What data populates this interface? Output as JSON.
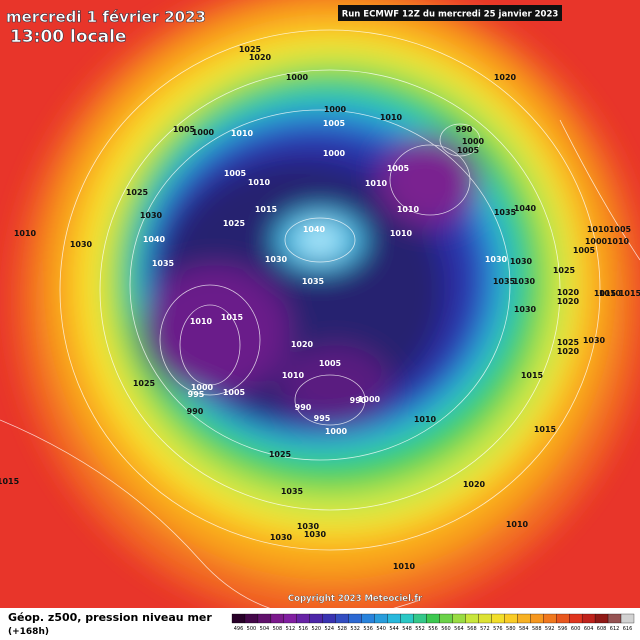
{
  "header": {
    "title": "mercredi 1 février 2023",
    "subtitle": "13:00 locale",
    "run": "Run ECMWF 12Z du mercredi 25 janvier 2023"
  },
  "map": {
    "copyright": "Copyright 2023 Meteociel.fr",
    "isobar_labels": [
      "1025",
      "1020",
      "1000",
      "1020",
      "1000",
      "1010",
      "1005",
      "990",
      "1005",
      "1000",
      "1010",
      "1000",
      "1005",
      "1000",
      "1005",
      "1005",
      "1010",
      "1010",
      "1025",
      "1010",
      "1030",
      "1015",
      "1035",
      "1040",
      "1025",
      "1010",
      "1040",
      "1030",
      "1040",
      "1010",
      "1030",
      "1035",
      "1035",
      "1030",
      "1030",
      "1025",
      "1035",
      "1030",
      "1020",
      "1020",
      "1015",
      "1010",
      "1015",
      "1030",
      "1025",
      "1020",
      "1030",
      "1020",
      "1010",
      "1005",
      "1015",
      "1025",
      "1000",
      "1005",
      "995",
      "990",
      "990",
      "990",
      "1000",
      "995",
      "1000",
      "1010",
      "1015",
      "1025",
      "1035",
      "1020",
      "1030",
      "1030",
      "1030",
      "1010",
      "1010",
      "1015",
      "1010",
      "1005",
      "1000",
      "1010",
      "1005",
      "1010",
      "1015"
    ]
  },
  "footer": {
    "title": "Géop. z500, pression niveau mer",
    "subtitle": "(+168h)"
  },
  "legend": {
    "ticks": [
      496,
      500,
      504,
      508,
      512,
      516,
      520,
      524,
      528,
      532,
      536,
      540,
      544,
      548,
      552,
      556,
      560,
      564,
      568,
      572,
      576,
      580,
      584,
      588,
      592,
      596,
      600,
      604,
      608,
      612,
      616
    ]
  }
}
